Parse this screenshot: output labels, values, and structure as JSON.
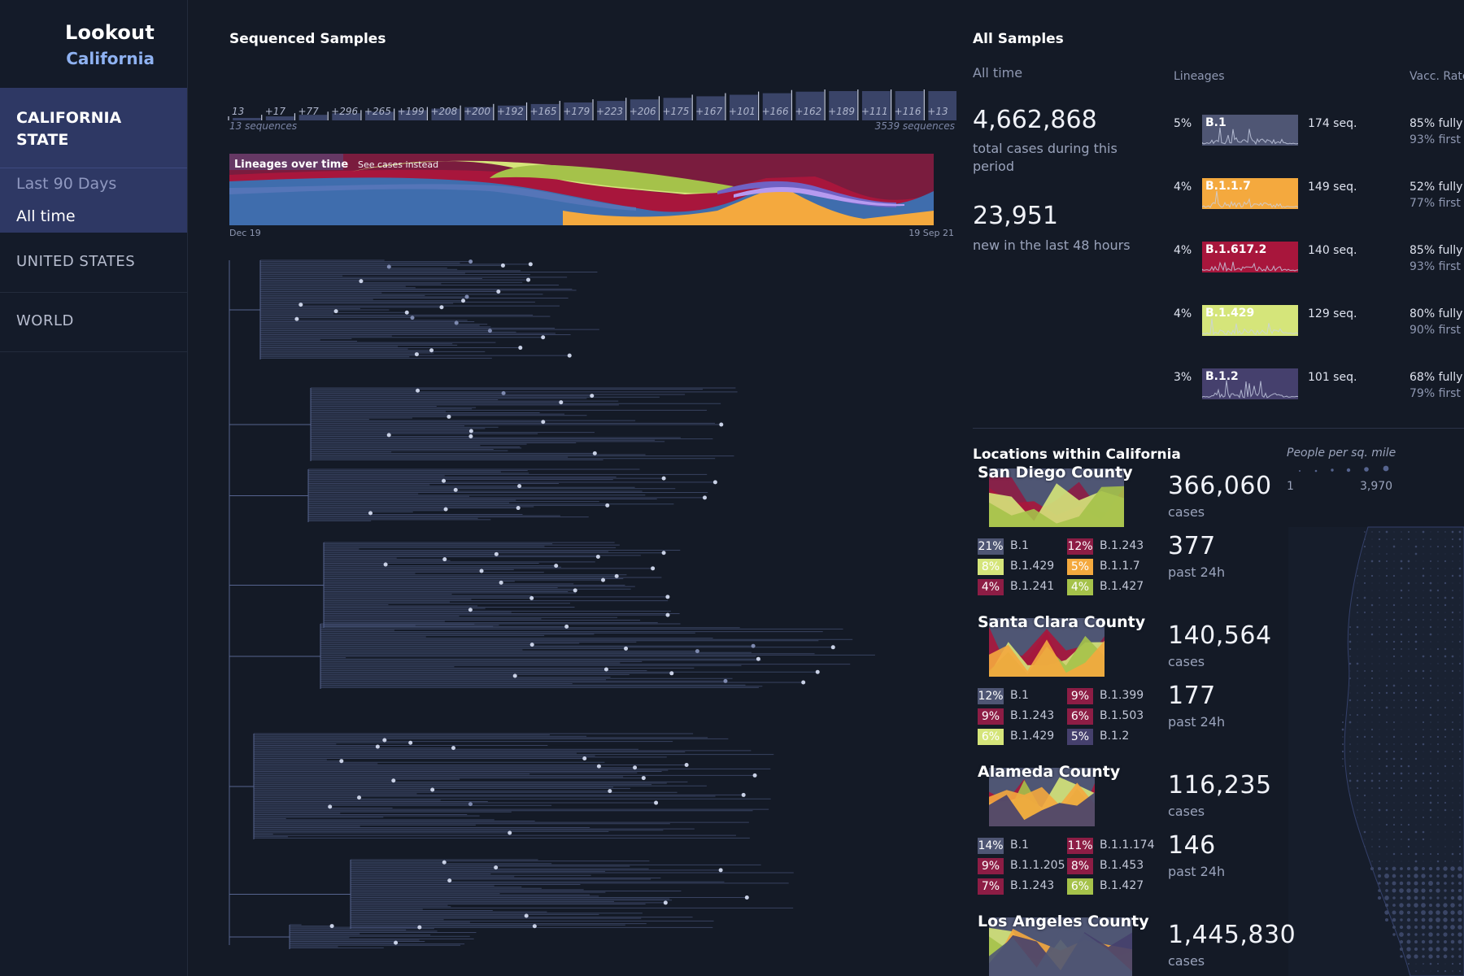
{
  "app": {
    "title": "Lookout",
    "subtitle": "California"
  },
  "sidebar": {
    "active_section": "CALIFORNIA STATE",
    "active_section_lines": [
      "CALIFORNIA",
      "STATE"
    ],
    "options": [
      {
        "label": "Last 90 Days",
        "selected": false
      },
      {
        "label": "All time",
        "selected": true
      }
    ],
    "sections": [
      "UNITED STATES",
      "WORLD"
    ]
  },
  "sequenced": {
    "title": "Sequenced Samples",
    "tick_labels": [
      "13",
      "+17",
      "+77",
      "+296",
      "+265",
      "+199",
      "+208",
      "+200",
      "+192",
      "+165",
      "+179",
      "+223",
      "+206",
      "+175",
      "+167",
      "+101",
      "+166",
      "+162",
      "+189",
      "+111",
      "+116",
      "+13"
    ],
    "start_caption": "13 sequences",
    "end_caption": "3539 sequences",
    "lineage_chart_title": "Lineages over time",
    "lineage_chart_link": "See cases instead",
    "date_start": "Dec 19",
    "date_end": "19 Sep 21"
  },
  "all_samples": {
    "title": "All Samples",
    "period": "All time",
    "total_cases": "4,662,868",
    "total_caption": "total cases during this period",
    "new_cases": "23,951",
    "new_caption": "new in the last 48 hours",
    "lineages_header": "Lineages",
    "vacc_header": "Vacc. Rate",
    "lineages": [
      {
        "pct": "5%",
        "name": "B.1",
        "seq": "174 seq.",
        "color": "#4f5674",
        "vacc_full": "85% fully",
        "vacc_first": "93% first"
      },
      {
        "pct": "4%",
        "name": "B.1.1.7",
        "seq": "149 seq.",
        "color": "#f4a93e",
        "vacc_full": "52% fully",
        "vacc_first": "77% first"
      },
      {
        "pct": "4%",
        "name": "B.1.617.2",
        "seq": "140 seq.",
        "color": "#a8163c",
        "vacc_full": "85% fully",
        "vacc_first": "93% first"
      },
      {
        "pct": "4%",
        "name": "B.1.429",
        "seq": "129 seq.",
        "color": "#d5e57a",
        "vacc_full": "80% fully",
        "vacc_first": "90% first"
      },
      {
        "pct": "3%",
        "name": "B.1.2",
        "seq": "101 seq.",
        "color": "#45406d",
        "vacc_full": "68% fully",
        "vacc_first": "79% first"
      }
    ]
  },
  "locations": {
    "title": "Locations within California",
    "density_label": "People per sq. mile",
    "density_min": "1",
    "density_max": "3,970",
    "counties": [
      {
        "name": "San Diego County",
        "cases": "366,060",
        "cases_label": "cases",
        "past": "377",
        "past_label": "past 24h",
        "chips": [
          {
            "pct": "21%",
            "lineage": "B.1",
            "color": "#4f5674"
          },
          {
            "pct": "12%",
            "lineage": "B.1.243",
            "color": "#8d1d45"
          },
          {
            "pct": "8%",
            "lineage": "B.1.429",
            "color": "#d5e57a"
          },
          {
            "pct": "5%",
            "lineage": "B.1.1.7",
            "color": "#f4a93e"
          },
          {
            "pct": "4%",
            "lineage": "B.1.241",
            "color": "#8d1d45"
          },
          {
            "pct": "4%",
            "lineage": "B.1.427",
            "color": "#a5c24a"
          }
        ]
      },
      {
        "name": "Santa Clara County",
        "cases": "140,564",
        "cases_label": "cases",
        "past": "177",
        "past_label": "past 24h",
        "chips": [
          {
            "pct": "12%",
            "lineage": "B.1",
            "color": "#4f5674"
          },
          {
            "pct": "9%",
            "lineage": "B.1.399",
            "color": "#8d1d45"
          },
          {
            "pct": "9%",
            "lineage": "B.1.243",
            "color": "#8d1d45"
          },
          {
            "pct": "6%",
            "lineage": "B.1.503",
            "color": "#8d1d45"
          },
          {
            "pct": "6%",
            "lineage": "B.1.429",
            "color": "#d5e57a"
          },
          {
            "pct": "5%",
            "lineage": "B.1.2",
            "color": "#45406d"
          }
        ]
      },
      {
        "name": "Alameda County",
        "cases": "116,235",
        "cases_label": "cases",
        "past": "146",
        "past_label": "past 24h",
        "chips": [
          {
            "pct": "14%",
            "lineage": "B.1",
            "color": "#4f5674"
          },
          {
            "pct": "11%",
            "lineage": "B.1.1.174",
            "color": "#8d1d45"
          },
          {
            "pct": "9%",
            "lineage": "B.1.1.205",
            "color": "#8d1d45"
          },
          {
            "pct": "8%",
            "lineage": "B.1.453",
            "color": "#8d1d45"
          },
          {
            "pct": "7%",
            "lineage": "B.1.243",
            "color": "#8d1d45"
          },
          {
            "pct": "6%",
            "lineage": "B.1.427",
            "color": "#a5c24a"
          }
        ]
      },
      {
        "name": "Los Angeles County",
        "cases": "1,445,830",
        "cases_label": "cases",
        "past": "",
        "past_label": "",
        "chips": []
      }
    ]
  }
}
